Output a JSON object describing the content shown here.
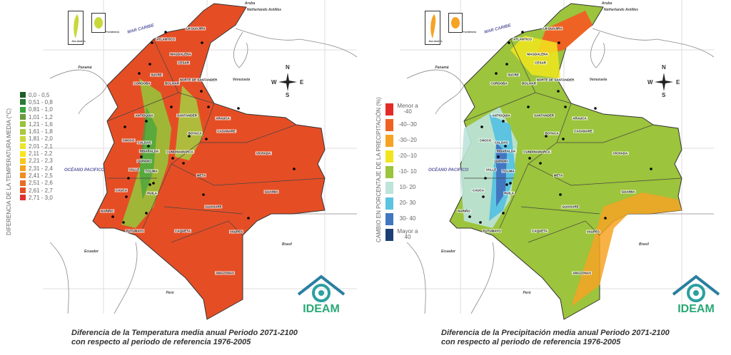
{
  "maps": [
    {
      "legend_title": "DIFERENCIA DE LA  TEMPERATURA MEDIA (°C)",
      "legend": [
        {
          "label": "0,0 - 0,5",
          "color": "#1e5c2a"
        },
        {
          "label": "0,51 - 0,8",
          "color": "#2a7a36"
        },
        {
          "label": "0,81 - 1,0",
          "color": "#3aa440"
        },
        {
          "label": "1,01 - 1,2",
          "color": "#6e9a3c"
        },
        {
          "label": "1,21 - 1,6",
          "color": "#98c23a"
        },
        {
          "label": "1,61 - 1,8",
          "color": "#a9c840"
        },
        {
          "label": "1,81 - 2,0",
          "color": "#c8d83a"
        },
        {
          "label": "2,01 - 2,1",
          "color": "#eee52a"
        },
        {
          "label": "2,11 - 2,2",
          "color": "#f7e51e"
        },
        {
          "label": "2,21 - 2,3",
          "color": "#f8c51a"
        },
        {
          "label": "2,31 - 2,4",
          "color": "#f4a41e"
        },
        {
          "label": "2,41 - 2,5",
          "color": "#f28c22"
        },
        {
          "label": "2,51 - 2,6",
          "color": "#e66e24"
        },
        {
          "label": "2,61 - 2,7",
          "color": "#e54e25"
        },
        {
          "label": "2,71 - 3,0",
          "color": "#df3030"
        }
      ],
      "caption_line1": "Diferencia de la Temperatura media anual Periodo 2071-2100",
      "caption_line2": "con respecto al periodo de referencia 1976-2005"
    },
    {
      "legend_title": "CAMBIO EN PORCENTAJE DE LA PRECIPITACIÓN (%)",
      "legend": [
        {
          "label": "Menor a -40",
          "color": "#e42a27"
        },
        {
          "label": "-40--30",
          "color": "#ee6323"
        },
        {
          "label": "-30--20",
          "color": "#f6a324"
        },
        {
          "label": "-20--10",
          "color": "#f1e61e"
        },
        {
          "label": "-10- 10",
          "color": "#9cc43c"
        },
        {
          "label": "10- 20",
          "color": "#bde3da"
        },
        {
          "label": "20- 30",
          "color": "#5cc3e0"
        },
        {
          "label": "30- 40",
          "color": "#4277c0"
        },
        {
          "label": "Mayor a 40",
          "color": "#1b3f74"
        }
      ],
      "caption_line1": "Diferencia de la Precipitación media anual Periodo 2071-2100",
      "caption_line2": "con respecto al periodo de referencia 1976-2005"
    }
  ],
  "departments": [
    "ATLANTICO",
    "MAGDALENA",
    "LA GUAJIRA",
    "CESAR",
    "SUCRE",
    "CORDOBA",
    "BOLIVAR",
    "NORTE DE SANTANDER",
    "ANTIOQUIA",
    "SANTANDER",
    "ARAUCA",
    "CASANARE",
    "BOYACA",
    "CHOCO",
    "CALDAS",
    "RISARALDA",
    "CUNDINAMARCA",
    "QUINDIO",
    "VALLE",
    "TOLIMA",
    "META",
    "VICHADA",
    "CAUCA",
    "HUILA",
    "NARIÑO",
    "GUAINIA",
    "GUAVIARE",
    "PUTUMAYO",
    "CAQUETA",
    "VAUPES",
    "AMAZONAS"
  ],
  "countries": [
    "Panamá",
    "Venezuela",
    "Ecuador",
    "Perú",
    "Brasil",
    "Aruba",
    "Netherlands Antilles"
  ],
  "seas": {
    "caribbean": "MAR CARIBE",
    "pacific": "OCÉANO PACIFICO"
  },
  "islands": {
    "san_andres": "San Andrés",
    "providencia": "Providencia"
  },
  "compass": {
    "n": "N",
    "s": "S",
    "e": "E",
    "w": "W"
  },
  "logo": "IDEAM"
}
